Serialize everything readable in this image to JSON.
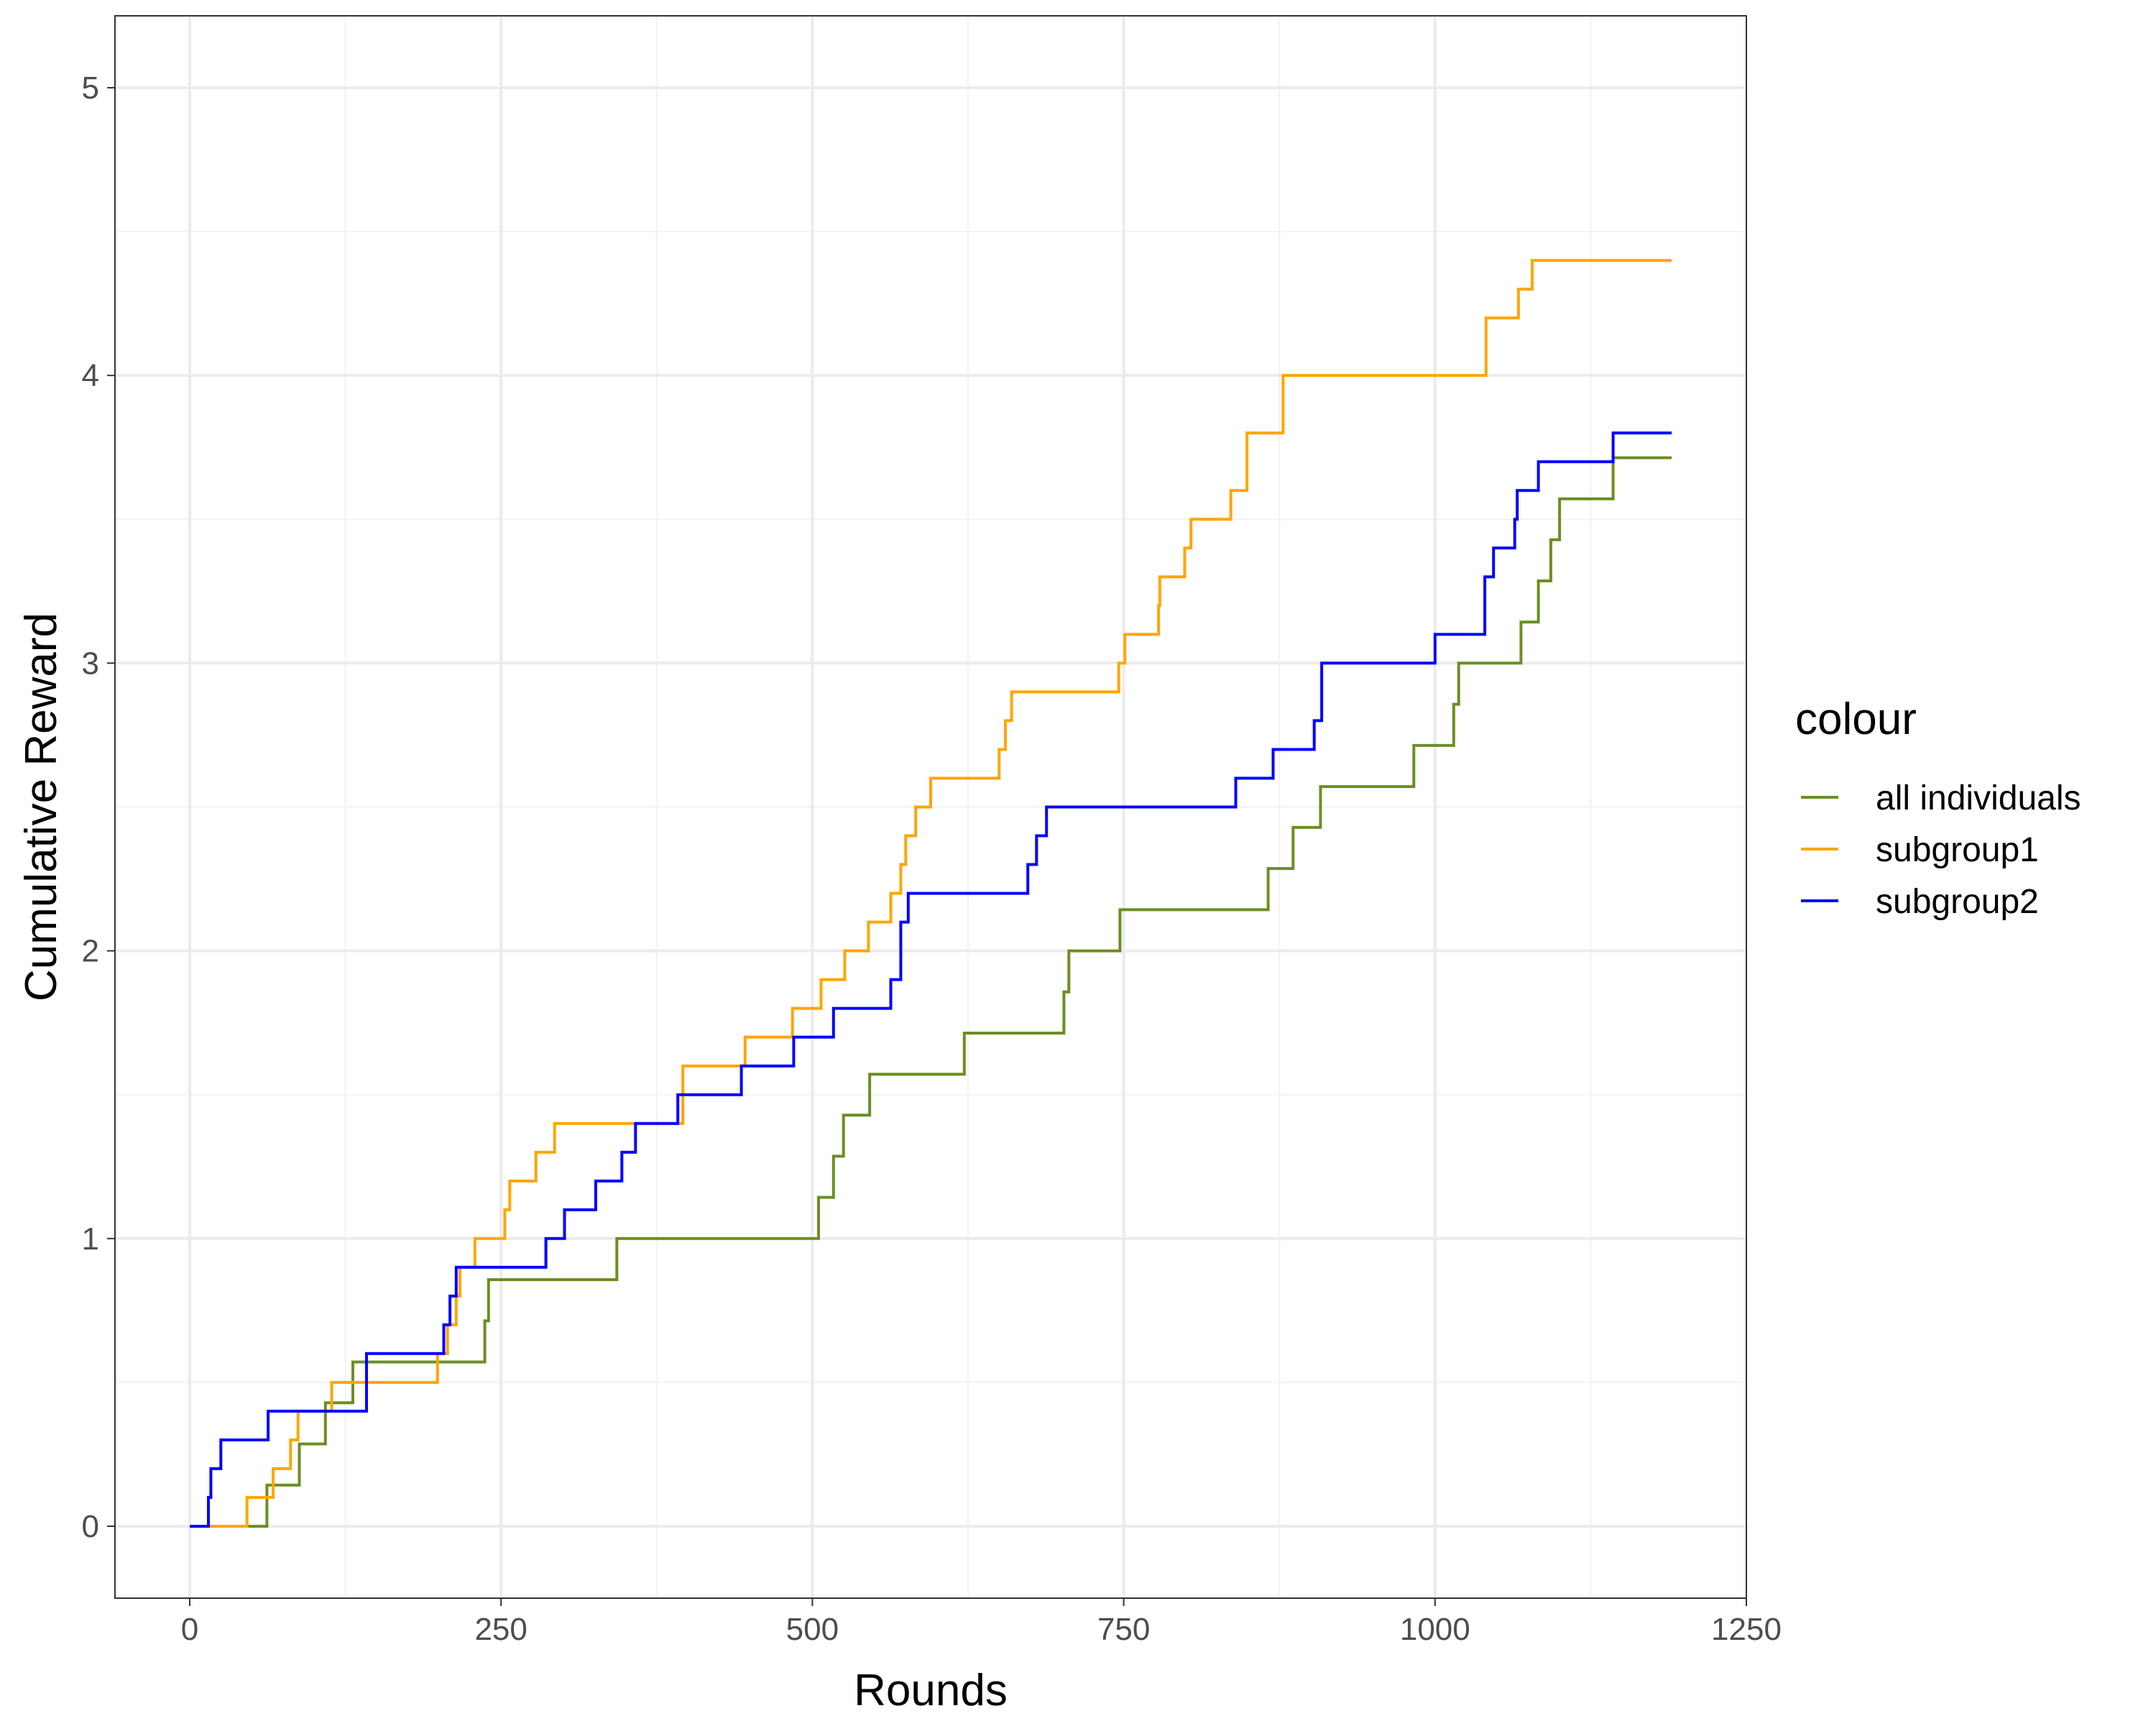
{
  "chart_data": {
    "type": "line",
    "line_shape": "step",
    "title": "",
    "xlabel": "Rounds",
    "ylabel": "Cumulative Reward",
    "xlim": [
      -60,
      1250
    ],
    "ylim": [
      -0.25,
      5.25
    ],
    "xticks": [
      0,
      250,
      500,
      750,
      1000,
      1250
    ],
    "yticks": [
      0,
      1,
      2,
      3,
      4,
      5
    ],
    "xtick_labels": [
      "0",
      "250",
      "500",
      "750",
      "1000",
      "1250"
    ],
    "ytick_labels": [
      "0",
      "1",
      "2",
      "3",
      "4",
      "5"
    ],
    "grid": true,
    "legend": {
      "title": "colour",
      "position": "right"
    },
    "series": [
      {
        "name": "all individuals",
        "color": "#6B8E23",
        "x": [
          0,
          58,
          62,
          88,
          109,
          131,
          237,
          240,
          343,
          505,
          517,
          525,
          546,
          622,
          702,
          706,
          747,
          866,
          886,
          908,
          983,
          1015,
          1019,
          1024,
          1069,
          1083,
          1093,
          1100,
          1143,
          1190
        ],
        "y": [
          0,
          0,
          0.143,
          0.286,
          0.429,
          0.571,
          0.714,
          0.857,
          1.0,
          1.143,
          1.286,
          1.429,
          1.571,
          1.714,
          1.857,
          2.0,
          2.143,
          2.286,
          2.429,
          2.571,
          2.714,
          2.857,
          3.0,
          3.0,
          3.143,
          3.286,
          3.429,
          3.571,
          3.714,
          3.714
        ]
      },
      {
        "name": "subgroup1",
        "color": "#FFA500",
        "x": [
          0,
          46,
          67,
          81,
          87,
          114,
          199,
          207,
          214,
          217,
          229,
          253,
          257,
          278,
          293,
          396,
          446,
          484,
          507,
          526,
          545,
          563,
          571,
          575,
          583,
          595,
          650,
          655,
          660,
          746,
          751,
          778,
          779,
          799,
          804,
          836,
          849,
          878,
          1041,
          1067,
          1078,
          1190
        ],
        "y": [
          0,
          0.1,
          0.2,
          0.3,
          0.4,
          0.5,
          0.6,
          0.7,
          0.8,
          0.9,
          1.0,
          1.1,
          1.2,
          1.3,
          1.4,
          1.6,
          1.7,
          1.8,
          1.9,
          2.0,
          2.1,
          2.2,
          2.3,
          2.4,
          2.5,
          2.6,
          2.7,
          2.8,
          2.9,
          3.0,
          3.1,
          3.2,
          3.3,
          3.4,
          3.5,
          3.6,
          3.8,
          4.0,
          4.2,
          4.3,
          4.4,
          4.4
        ]
      },
      {
        "name": "subgroup2",
        "color": "#0000FF",
        "x": [
          0,
          15,
          17,
          25,
          63,
          142,
          204,
          209,
          214,
          286,
          301,
          326,
          347,
          358,
          392,
          443,
          485,
          517,
          563,
          571,
          577,
          590,
          673,
          680,
          688,
          840,
          870,
          903,
          909,
          1000,
          1040,
          1047,
          1064,
          1066,
          1083,
          1143,
          1190
        ],
        "y": [
          0,
          0.1,
          0.2,
          0.3,
          0.4,
          0.6,
          0.7,
          0.8,
          0.9,
          1.0,
          1.1,
          1.2,
          1.3,
          1.4,
          1.5,
          1.6,
          1.7,
          1.8,
          1.9,
          2.1,
          2.2,
          2.2,
          2.3,
          2.4,
          2.5,
          2.6,
          2.7,
          2.8,
          3.0,
          3.1,
          3.3,
          3.4,
          3.5,
          3.6,
          3.7,
          3.8,
          3.8
        ]
      }
    ]
  }
}
